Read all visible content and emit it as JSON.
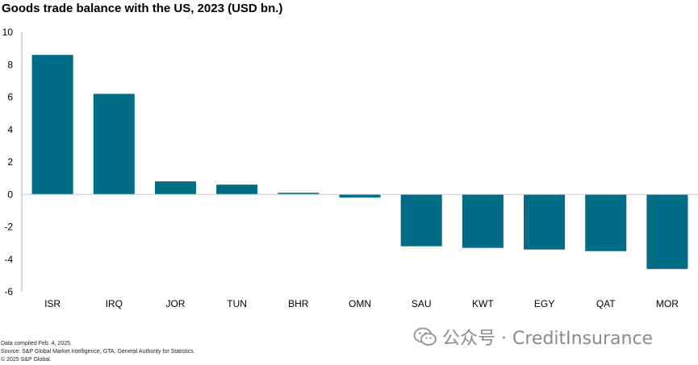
{
  "title": "Goods trade balance with the US, 2023 (USD bn.)",
  "chart_data": {
    "type": "bar",
    "title": "Goods trade balance with the US, 2023 (USD bn.)",
    "xlabel": "",
    "ylabel": "",
    "categories": [
      "ISR",
      "IRQ",
      "JOR",
      "TUN",
      "BHR",
      "OMN",
      "SAU",
      "KWT",
      "EGY",
      "QAT",
      "MOR"
    ],
    "values": [
      8.6,
      6.2,
      0.8,
      0.6,
      0.1,
      -0.2,
      -3.2,
      -3.3,
      -3.4,
      -3.5,
      -4.6
    ],
    "ylim": [
      -6,
      10
    ],
    "yticks": [
      "10",
      "8",
      "6",
      "4",
      "2",
      "0",
      "-2",
      "-4",
      "-6"
    ],
    "bar_color": "#006c86",
    "grid": false
  },
  "footer": {
    "line1": "Data compiled Feb. 4, 2025.",
    "line2": "Source: S&P Global Market Intelligence, GTA, General Authority for Statistics.",
    "line3": "© 2025 S&P Global."
  },
  "watermark": {
    "text": "公众号 · CreditInsurance",
    "icon": "wechat-icon"
  }
}
